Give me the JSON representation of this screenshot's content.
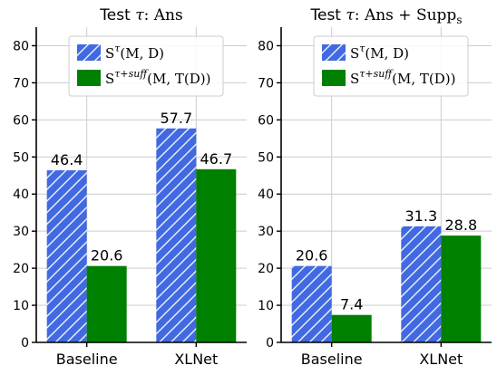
{
  "colors": {
    "series_1_fill": "#4169e1",
    "series_1_hatch": "#ffffff",
    "series_2_fill": "#008000",
    "grid": "#cccccc",
    "axis": "#000000"
  },
  "chart_data": [
    {
      "type": "bar",
      "title": {
        "prefix": "Test",
        "tau": "τ",
        "colon": ":",
        "math": "Ans"
      },
      "categories": [
        "Baseline",
        "XLNet"
      ],
      "series": [
        {
          "name": "S^τ(M, D)",
          "legend": {
            "base": "S",
            "sup": "τ",
            "args": "(M, D)"
          },
          "values": [
            46.4,
            57.7
          ],
          "hatch": true
        },
        {
          "name": "S^{τ+suff}(M, T(D))",
          "legend": {
            "base": "S",
            "sup": "τ+suff",
            "args": "(M, T(D))"
          },
          "values": [
            20.6,
            46.7
          ],
          "hatch": false
        }
      ],
      "data_labels": [
        [
          "46.4",
          "57.7"
        ],
        [
          "20.6",
          "46.7"
        ]
      ],
      "ylim": [
        0,
        85
      ],
      "yticks": [
        0,
        10,
        20,
        30,
        40,
        50,
        60,
        70,
        80
      ],
      "grid": true,
      "legend_position": "top-center"
    },
    {
      "type": "bar",
      "title": {
        "prefix": "Test",
        "tau": "τ",
        "colon": ":",
        "math": "Ans + Supp",
        "math_sub": "s"
      },
      "categories": [
        "Baseline",
        "XLNet"
      ],
      "series": [
        {
          "name": "S^τ(M, D)",
          "legend": {
            "base": "S",
            "sup": "τ",
            "args": "(M, D)"
          },
          "values": [
            20.6,
            31.3
          ],
          "hatch": true
        },
        {
          "name": "S^{τ+suff}(M, T(D))",
          "legend": {
            "base": "S",
            "sup": "τ+suff",
            "args": "(M, T(D))"
          },
          "values": [
            7.4,
            28.8
          ],
          "hatch": false
        }
      ],
      "data_labels": [
        [
          "20.6",
          "31.3"
        ],
        [
          "7.4",
          "28.8"
        ]
      ],
      "ylim": [
        0,
        85
      ],
      "yticks": [
        0,
        10,
        20,
        30,
        40,
        50,
        60,
        70,
        80
      ],
      "grid": true,
      "legend_position": "top-center"
    }
  ]
}
